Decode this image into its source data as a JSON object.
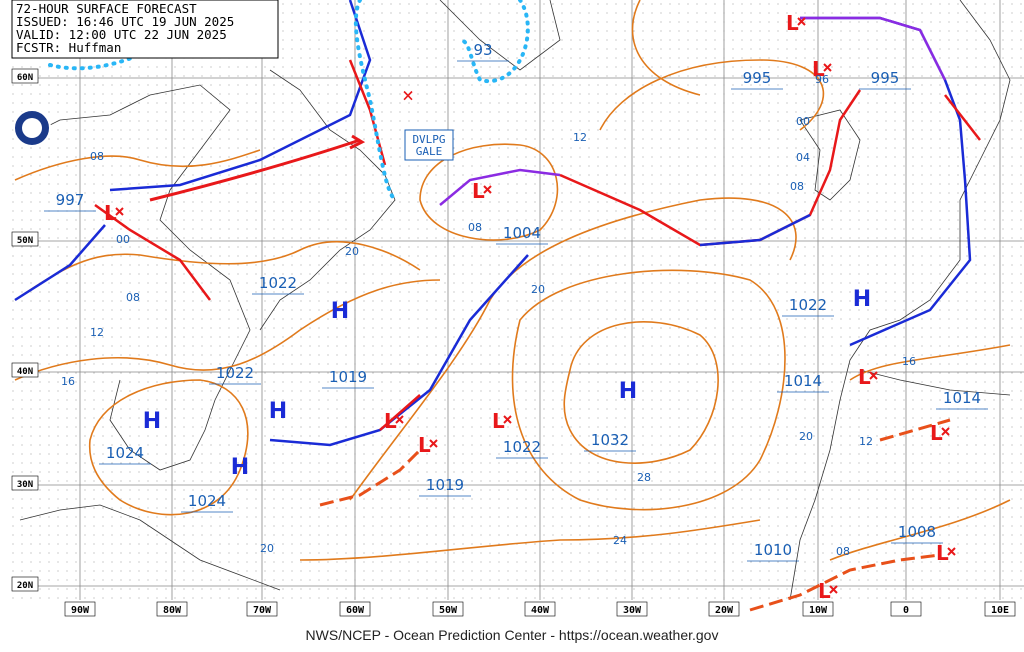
{
  "header": {
    "lines": [
      "72-HOUR SURFACE FORECAST",
      "ISSUED: 16:46 UTC 19 JUN 2025",
      "VALID: 12:00 UTC 22 JUN 2025",
      "FCSTR: Huffman"
    ]
  },
  "annotation": {
    "lines": [
      "DVLPG",
      "GALE"
    ]
  },
  "latitudes": [
    "60N",
    "50N",
    "40N",
    "30N",
    "20N"
  ],
  "longitudes": [
    "90W",
    "80W",
    "70W",
    "60W",
    "50W",
    "40W",
    "30W",
    "20W",
    "10W",
    "0",
    "10E"
  ],
  "pressure_labels": [
    "997",
    "1022",
    "1022",
    "1019",
    "1024",
    "1024",
    "1004",
    "1022",
    "1032",
    "1019",
    "995",
    "995",
    "1022",
    "1014",
    "1014",
    "1010",
    "1008",
    "93"
  ],
  "highs": [
    "H",
    "H",
    "H",
    "H",
    "H",
    "H"
  ],
  "lows": [
    "L",
    "L",
    "L",
    "L",
    "L",
    "L",
    "L",
    "L",
    "L",
    "L",
    "L"
  ],
  "isobar_labels": [
    "08",
    "00",
    "08",
    "12",
    "16",
    "20",
    "08",
    "12",
    "20",
    "28",
    "24",
    "20",
    "96",
    "00",
    "04",
    "08",
    "16",
    "20",
    "12",
    "08"
  ],
  "footer": "NWS/NCEP - Ocean Prediction Center - https://ocean.weather.gov"
}
